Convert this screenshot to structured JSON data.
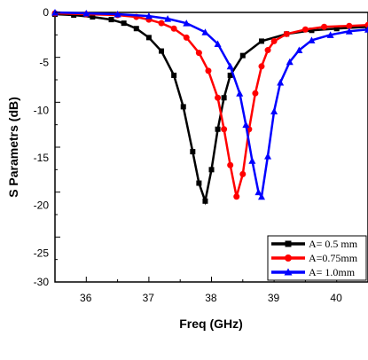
{
  "chart_data": {
    "type": "line",
    "xlabel": "Freq (GHz)",
    "ylabel": "S Parametrs (dB)",
    "xlim": [
      35.5,
      40.5
    ],
    "ylim": [
      -30,
      0
    ],
    "x_ticks": [
      "36",
      "37",
      "38",
      "39",
      "40"
    ],
    "y_ticks": [
      "0",
      "-5",
      "-10",
      "-15",
      "-20",
      "-25",
      "-30"
    ],
    "grid": false,
    "legend_position": "bottom-right",
    "series": [
      {
        "name": "A= 0.5 mm",
        "color": "#000000",
        "marker": "square",
        "x": [
          35.5,
          35.8,
          36.1,
          36.4,
          36.6,
          36.8,
          37.0,
          37.2,
          37.4,
          37.55,
          37.7,
          37.8,
          37.9,
          38.0,
          38.1,
          38.2,
          38.3,
          38.5,
          38.8,
          39.2,
          39.6,
          40.0,
          40.5
        ],
        "y": [
          -0.2,
          -0.3,
          -0.5,
          -0.8,
          -1.2,
          -1.8,
          -2.8,
          -4.3,
          -7.0,
          -10.5,
          -15.5,
          -19.0,
          -21.0,
          -17.5,
          -13.0,
          -9.5,
          -7.0,
          -4.8,
          -3.2,
          -2.4,
          -2.0,
          -1.8,
          -1.6
        ]
      },
      {
        "name": "A=0.75mm",
        "color": "#ff0000",
        "marker": "circle",
        "x": [
          35.5,
          36.0,
          36.5,
          36.8,
          37.0,
          37.2,
          37.4,
          37.6,
          37.8,
          37.95,
          38.1,
          38.2,
          38.3,
          38.4,
          38.5,
          38.6,
          38.7,
          38.8,
          38.9,
          39.0,
          39.2,
          39.5,
          39.8,
          40.2,
          40.5
        ],
        "y": [
          -0.1,
          -0.2,
          -0.3,
          -0.5,
          -0.8,
          -1.2,
          -1.8,
          -2.8,
          -4.5,
          -6.5,
          -9.5,
          -13.0,
          -17.0,
          -20.5,
          -18.0,
          -13.0,
          -9.0,
          -6.0,
          -4.2,
          -3.2,
          -2.4,
          -1.9,
          -1.6,
          -1.5,
          -1.4
        ]
      },
      {
        "name": "A= 1.0mm",
        "color": "#0000ff",
        "marker": "triangle",
        "x": [
          35.5,
          36.0,
          36.5,
          37.0,
          37.3,
          37.6,
          37.9,
          38.1,
          38.3,
          38.45,
          38.55,
          38.65,
          38.75,
          38.8,
          38.9,
          39.0,
          39.1,
          39.25,
          39.4,
          39.6,
          39.9,
          40.2,
          40.5
        ],
        "y": [
          0.0,
          -0.1,
          -0.2,
          -0.4,
          -0.7,
          -1.2,
          -2.2,
          -3.5,
          -6.0,
          -9.0,
          -12.5,
          -16.5,
          -20.0,
          -20.5,
          -16.0,
          -11.0,
          -7.8,
          -5.5,
          -4.2,
          -3.1,
          -2.5,
          -2.1,
          -1.9
        ]
      }
    ]
  }
}
